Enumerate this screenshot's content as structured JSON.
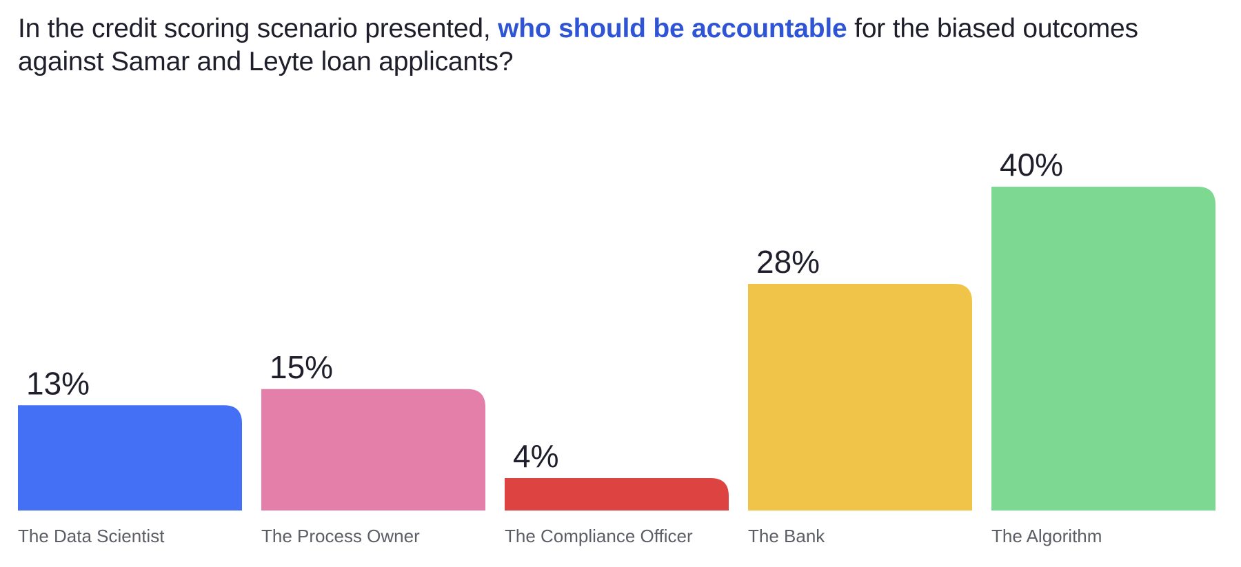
{
  "question": {
    "prefix": "In the credit scoring scenario presented, ",
    "highlight": "who should be accountable",
    "suffix": " for the biased outcomes against Samar and Leyte loan applicants?"
  },
  "chart_data": {
    "type": "bar",
    "title": "In the credit scoring scenario presented, who should be accountable for the biased outcomes against Samar and Leyte loan applicants?",
    "categories": [
      "The Data Scientist",
      "The Process Owner",
      "The Compliance Officer",
      "The Bank",
      "The Algorithm"
    ],
    "values": [
      13,
      15,
      4,
      28,
      40
    ],
    "value_labels": [
      "13%",
      "15%",
      "4%",
      "28%",
      "40%"
    ],
    "colors": [
      "#4470f6",
      "#e47fa9",
      "#dd4340",
      "#f0c448",
      "#7dd892"
    ],
    "xlabel": "",
    "ylabel": "",
    "ylim": [
      0,
      40
    ],
    "grid": false,
    "legend": "none"
  }
}
